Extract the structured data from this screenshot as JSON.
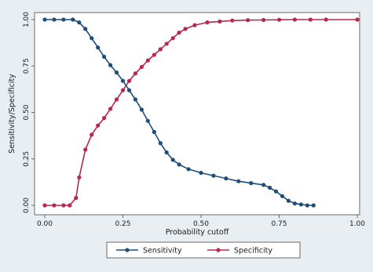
{
  "chart_data": {
    "type": "line",
    "xlabel": "Probability cutoff",
    "ylabel": "Sensitivity/Specificity",
    "xlim": [
      0,
      1
    ],
    "ylim": [
      0,
      1
    ],
    "x_ticks": [
      "0.00",
      "0.25",
      "0.50",
      "0.75",
      "1.00"
    ],
    "y_ticks": [
      "0.00",
      "0.25",
      "0.50",
      "0.75",
      "1.00"
    ],
    "grid": false,
    "legend_position": "bottom",
    "series": [
      {
        "name": "Sensitivity",
        "color": "#1f4e79",
        "marker": "circle",
        "points": [
          [
            0.0,
            1.0
          ],
          [
            0.03,
            1.0
          ],
          [
            0.06,
            1.0
          ],
          [
            0.09,
            1.0
          ],
          [
            0.11,
            0.985
          ],
          [
            0.13,
            0.95
          ],
          [
            0.15,
            0.9
          ],
          [
            0.17,
            0.85
          ],
          [
            0.19,
            0.8
          ],
          [
            0.21,
            0.755
          ],
          [
            0.23,
            0.715
          ],
          [
            0.25,
            0.67
          ],
          [
            0.27,
            0.62
          ],
          [
            0.29,
            0.57
          ],
          [
            0.31,
            0.515
          ],
          [
            0.33,
            0.455
          ],
          [
            0.35,
            0.395
          ],
          [
            0.37,
            0.335
          ],
          [
            0.39,
            0.285
          ],
          [
            0.41,
            0.245
          ],
          [
            0.43,
            0.22
          ],
          [
            0.46,
            0.195
          ],
          [
            0.5,
            0.175
          ],
          [
            0.54,
            0.16
          ],
          [
            0.58,
            0.145
          ],
          [
            0.62,
            0.13
          ],
          [
            0.66,
            0.12
          ],
          [
            0.7,
            0.11
          ],
          [
            0.72,
            0.095
          ],
          [
            0.74,
            0.075
          ],
          [
            0.76,
            0.05
          ],
          [
            0.78,
            0.025
          ],
          [
            0.8,
            0.01
          ],
          [
            0.82,
            0.005
          ],
          [
            0.84,
            0.0
          ],
          [
            0.86,
            0.0
          ]
        ]
      },
      {
        "name": "Specificity",
        "color": "#b5294c",
        "marker": "circle",
        "points": [
          [
            0.0,
            0.0
          ],
          [
            0.03,
            0.0
          ],
          [
            0.06,
            0.0
          ],
          [
            0.08,
            0.0
          ],
          [
            0.1,
            0.04
          ],
          [
            0.11,
            0.15
          ],
          [
            0.13,
            0.3
          ],
          [
            0.15,
            0.38
          ],
          [
            0.17,
            0.43
          ],
          [
            0.19,
            0.47
          ],
          [
            0.21,
            0.52
          ],
          [
            0.23,
            0.57
          ],
          [
            0.25,
            0.62
          ],
          [
            0.27,
            0.67
          ],
          [
            0.29,
            0.71
          ],
          [
            0.31,
            0.745
          ],
          [
            0.33,
            0.78
          ],
          [
            0.35,
            0.81
          ],
          [
            0.37,
            0.84
          ],
          [
            0.39,
            0.87
          ],
          [
            0.41,
            0.9
          ],
          [
            0.43,
            0.93
          ],
          [
            0.45,
            0.95
          ],
          [
            0.48,
            0.97
          ],
          [
            0.52,
            0.985
          ],
          [
            0.56,
            0.99
          ],
          [
            0.6,
            0.995
          ],
          [
            0.65,
            0.997
          ],
          [
            0.7,
            0.998
          ],
          [
            0.75,
            0.999
          ],
          [
            0.8,
            1.0
          ],
          [
            0.85,
            1.0
          ],
          [
            0.9,
            1.0
          ],
          [
            1.0,
            1.0
          ]
        ]
      }
    ]
  }
}
